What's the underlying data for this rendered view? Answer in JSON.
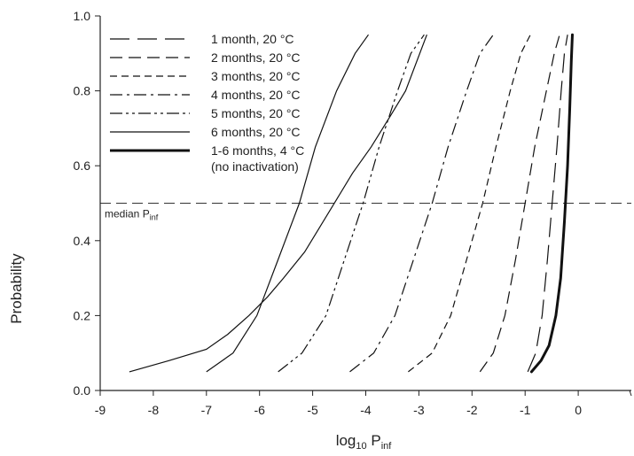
{
  "chart_data": {
    "type": "line",
    "title": "",
    "xlabel": {
      "main": "log",
      "sub1": "10",
      "mid": " P",
      "sub2": "inf"
    },
    "ylabel": "Probability",
    "xlim": [
      -9,
      1
    ],
    "ylim": [
      0,
      1
    ],
    "xticks": [
      -9,
      -8,
      -7,
      -6,
      -5,
      -4,
      -3,
      -2,
      -1,
      0
    ],
    "yticks": [
      0.0,
      0.2,
      0.4,
      0.6,
      0.8,
      1.0
    ],
    "legend_position": "top-left",
    "grid": false,
    "reference_line": {
      "y": 0.5,
      "label": "median P",
      "label_sub": "inf"
    },
    "series": [
      {
        "name": "1 month, 20 °C",
        "dash": "long-dash",
        "x": [
          -0.95,
          -0.8,
          -0.68,
          -0.58,
          -0.49,
          -0.4,
          -0.32,
          -0.26,
          -0.2
        ],
        "y": [
          0.05,
          0.1,
          0.2,
          0.35,
          0.5,
          0.65,
          0.8,
          0.9,
          0.95
        ]
      },
      {
        "name": "2 months, 20 °C",
        "dash": "medium-dash",
        "x": [
          -1.85,
          -1.6,
          -1.38,
          -1.18,
          -1.0,
          -0.82,
          -0.6,
          -0.45,
          -0.35
        ],
        "y": [
          0.05,
          0.1,
          0.2,
          0.35,
          0.5,
          0.65,
          0.8,
          0.9,
          0.95
        ]
      },
      {
        "name": "3 months, 20 °C",
        "dash": "short-dash",
        "x": [
          -3.2,
          -2.75,
          -2.4,
          -2.1,
          -1.8,
          -1.55,
          -1.28,
          -1.08,
          -0.9
        ],
        "y": [
          0.05,
          0.1,
          0.2,
          0.35,
          0.5,
          0.65,
          0.8,
          0.9,
          0.95
        ]
      },
      {
        "name": "4 months, 20 °C",
        "dash": "dash-dot",
        "x": [
          -4.3,
          -3.85,
          -3.45,
          -3.1,
          -2.75,
          -2.45,
          -2.1,
          -1.85,
          -1.6
        ],
        "y": [
          0.05,
          0.1,
          0.2,
          0.35,
          0.5,
          0.65,
          0.8,
          0.9,
          0.95
        ]
      },
      {
        "name": "5 months, 20 °C",
        "dash": "dash-dot-dot",
        "x": [
          -5.65,
          -5.2,
          -4.75,
          -4.4,
          -4.05,
          -3.75,
          -3.4,
          -3.15,
          -2.9
        ],
        "y": [
          0.05,
          0.1,
          0.2,
          0.35,
          0.5,
          0.65,
          0.8,
          0.9,
          0.95
        ]
      },
      {
        "name": "6 months, 20 °C",
        "dash": "solid",
        "x": [
          -7.0,
          -6.5,
          -6.05,
          -5.65,
          -5.25,
          -4.95,
          -4.55,
          -4.2,
          -3.95
        ],
        "y": [
          0.05,
          0.1,
          0.2,
          0.35,
          0.5,
          0.65,
          0.8,
          0.9,
          0.95
        ]
      },
      {
        "name": "1-6 months, 4 °C",
        "name2": "(no inactivation)",
        "dash": "solid-thick",
        "x": [
          -8.45,
          -7.7,
          -7.0,
          -6.6,
          -6.2,
          -5.85,
          -5.55,
          -5.15,
          -4.85,
          -4.55,
          -4.25,
          -3.9,
          -3.55,
          -3.25,
          -2.85
        ],
        "y": [
          0.05,
          0.08,
          0.11,
          0.15,
          0.2,
          0.25,
          0.3,
          0.37,
          0.44,
          0.51,
          0.58,
          0.65,
          0.73,
          0.8,
          0.95
        ]
      }
    ],
    "thick_curve": {
      "x": [
        -0.88,
        -0.7,
        -0.55,
        -0.42,
        -0.33,
        -0.26,
        -0.2,
        -0.16,
        -0.13,
        -0.11
      ],
      "y": [
        0.05,
        0.08,
        0.12,
        0.2,
        0.3,
        0.45,
        0.6,
        0.75,
        0.88,
        0.95
      ]
    }
  }
}
